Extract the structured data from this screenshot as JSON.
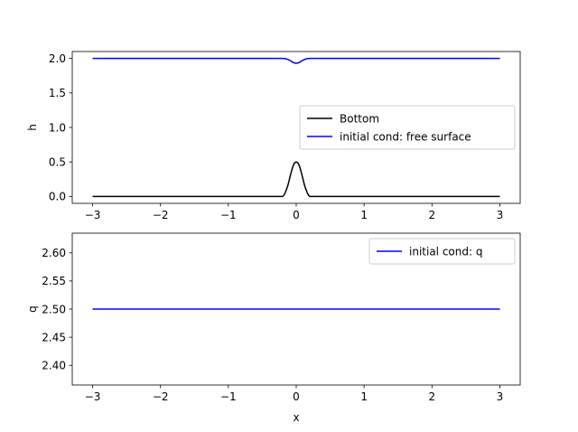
{
  "chart_data": [
    {
      "type": "line",
      "xlabel": "",
      "ylabel": "h",
      "xlim": [
        -3.3,
        3.3
      ],
      "ylim": [
        -0.1,
        2.1
      ],
      "xticks": [
        -3,
        -2,
        -1,
        0,
        1,
        2,
        3
      ],
      "xtick_labels": [
        "−3",
        "−2",
        "−1",
        "0",
        "1",
        "2",
        "3"
      ],
      "yticks": [
        0.0,
        0.5,
        1.0,
        1.5,
        2.0
      ],
      "ytick_labels": [
        "0.0",
        "0.5",
        "1.0",
        "1.5",
        "2.0"
      ],
      "grid": false,
      "legend_position": "center-right",
      "series": [
        {
          "name": "Bottom",
          "color": "#000000",
          "x": [
            -3.0,
            -2.0,
            -1.0,
            -0.3,
            -0.2,
            -0.18,
            -0.16,
            -0.14,
            -0.12,
            -0.1,
            -0.08,
            -0.06,
            -0.04,
            -0.02,
            0.0,
            0.02,
            0.04,
            0.06,
            0.08,
            0.1,
            0.12,
            0.14,
            0.16,
            0.18,
            0.2,
            0.3,
            1.0,
            2.0,
            3.0
          ],
          "y": [
            0.0,
            0.0,
            0.0,
            0.0,
            0.0,
            0.02,
            0.06,
            0.11,
            0.17,
            0.25,
            0.33,
            0.4,
            0.46,
            0.49,
            0.5,
            0.49,
            0.46,
            0.4,
            0.33,
            0.25,
            0.17,
            0.11,
            0.06,
            0.02,
            0.0,
            0.0,
            0.0,
            0.0,
            0.0
          ]
        },
        {
          "name": "initial cond: free surface",
          "color": "#0000ff",
          "x": [
            -3.0,
            -2.0,
            -1.0,
            -0.2,
            -0.15,
            -0.1,
            -0.06,
            -0.03,
            0.0,
            0.03,
            0.06,
            0.1,
            0.15,
            0.2,
            1.0,
            2.0,
            3.0
          ],
          "y": [
            2.0,
            2.0,
            2.0,
            2.0,
            1.995,
            1.975,
            1.95,
            1.935,
            1.93,
            1.935,
            1.95,
            1.975,
            1.995,
            2.0,
            2.0,
            2.0,
            2.0
          ]
        }
      ]
    },
    {
      "type": "line",
      "xlabel": "x",
      "ylabel": "q",
      "xlim": [
        -3.3,
        3.3
      ],
      "ylim": [
        2.365,
        2.635
      ],
      "xticks": [
        -3,
        -2,
        -1,
        0,
        1,
        2,
        3
      ],
      "xtick_labels": [
        "−3",
        "−2",
        "−1",
        "0",
        "1",
        "2",
        "3"
      ],
      "yticks": [
        2.4,
        2.45,
        2.5,
        2.55,
        2.6
      ],
      "ytick_labels": [
        "2.40",
        "2.45",
        "2.50",
        "2.55",
        "2.60"
      ],
      "grid": false,
      "legend_position": "top-right",
      "series": [
        {
          "name": "initial cond: q",
          "color": "#0000ff",
          "x": [
            -3.0,
            3.0
          ],
          "y": [
            2.5,
            2.5
          ]
        }
      ]
    }
  ]
}
